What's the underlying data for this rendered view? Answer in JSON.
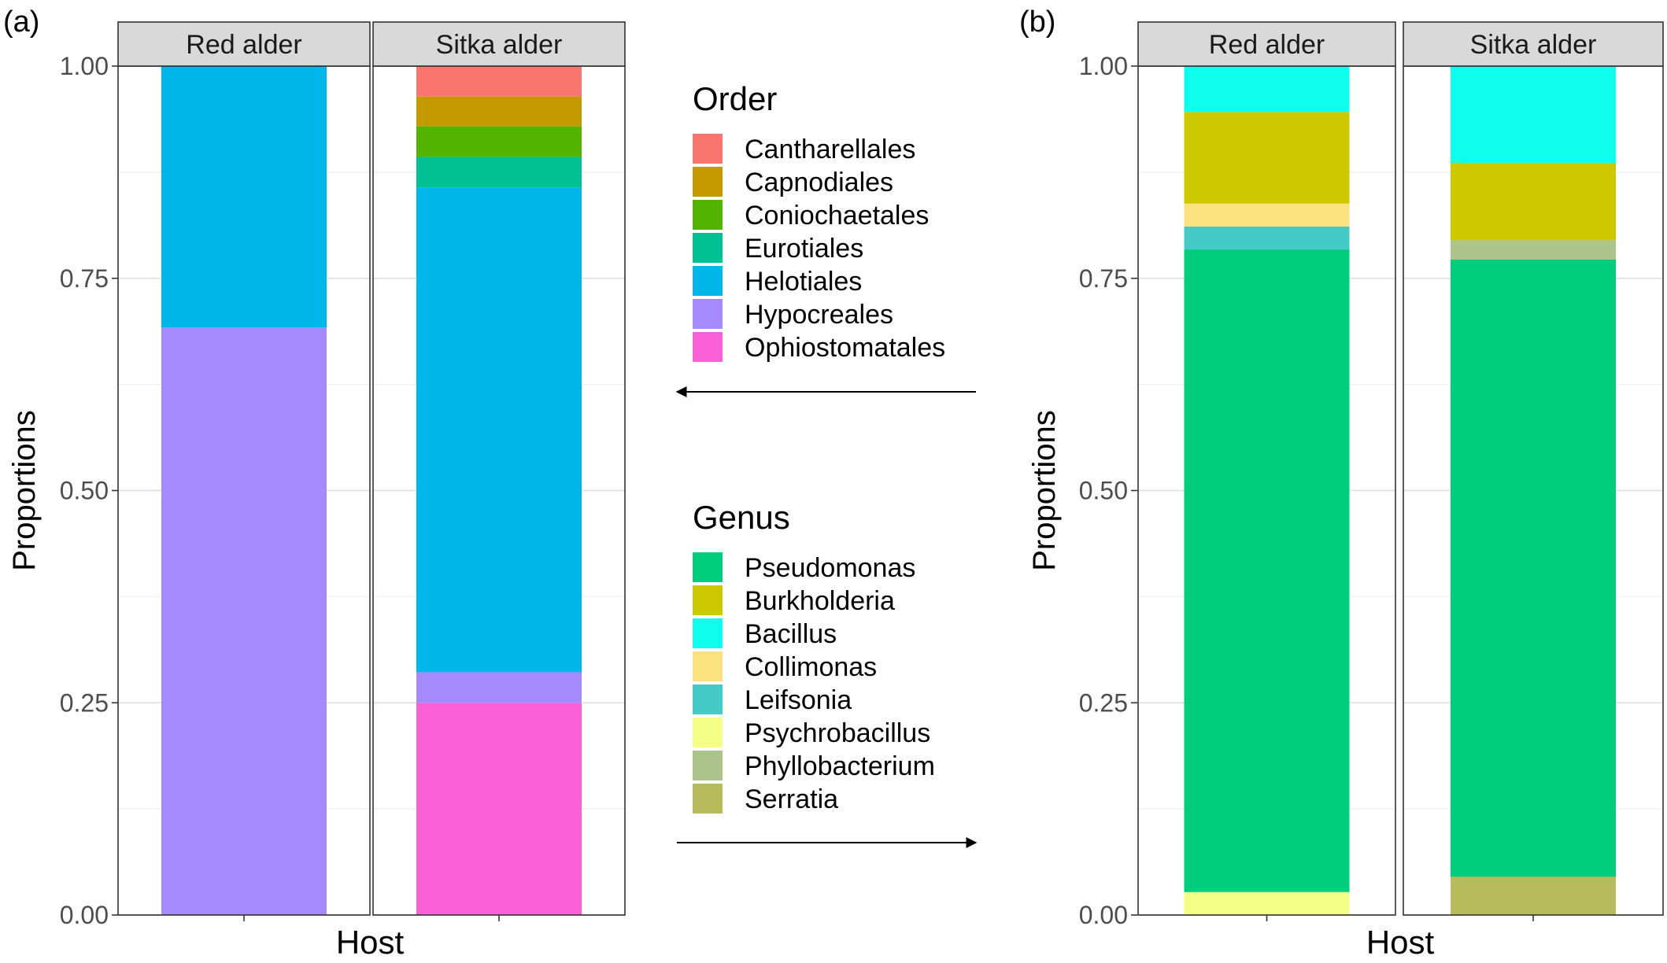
{
  "chart_data": [
    {
      "panel_label": "(a)",
      "type": "bar",
      "stacked": true,
      "ylabel": "Proportions",
      "xlabel": "Host",
      "ylim": [
        0,
        1
      ],
      "yticks": [
        "0.00",
        "0.25",
        "0.50",
        "0.75",
        "1.00"
      ],
      "grid": true,
      "facets": [
        "Red alder",
        "Sitka alder"
      ],
      "legend": {
        "title": "Order",
        "placement": "right",
        "items": [
          {
            "name": "Cantharellales",
            "color": "#F8766D"
          },
          {
            "name": "Capnodiales",
            "color": "#C49A00"
          },
          {
            "name": "Coniochaetales",
            "color": "#53B400"
          },
          {
            "name": "Eurotiales",
            "color": "#00C094"
          },
          {
            "name": "Helotiales",
            "color": "#00B6EB"
          },
          {
            "name": "Hypocreales",
            "color": "#A58AFF"
          },
          {
            "name": "Ophiostomatales",
            "color": "#FB61D7"
          }
        ]
      },
      "series": [
        {
          "name": "Ophiostomatales",
          "color": "#FB61D7",
          "values": [
            0.0,
            0.25
          ]
        },
        {
          "name": "Hypocreales",
          "color": "#A58AFF",
          "values": [
            0.692,
            0.036
          ]
        },
        {
          "name": "Helotiales",
          "color": "#00B6EB",
          "values": [
            0.308,
            0.571
          ]
        },
        {
          "name": "Eurotiales",
          "color": "#00C094",
          "values": [
            0.0,
            0.036
          ]
        },
        {
          "name": "Coniochaetales",
          "color": "#53B400",
          "values": [
            0.0,
            0.036
          ]
        },
        {
          "name": "Capnodiales",
          "color": "#C49A00",
          "values": [
            0.0,
            0.035
          ]
        },
        {
          "name": "Cantharellales",
          "color": "#F8766D",
          "values": [
            0.0,
            0.036
          ]
        }
      ]
    },
    {
      "panel_label": "(b)",
      "type": "bar",
      "stacked": true,
      "ylabel": "Proportions",
      "xlabel": "Host",
      "ylim": [
        0,
        1
      ],
      "yticks": [
        "0.00",
        "0.25",
        "0.50",
        "0.75",
        "1.00"
      ],
      "grid": true,
      "facets": [
        "Red alder",
        "Sitka alder"
      ],
      "legend": {
        "title": "Genus",
        "placement": "left",
        "items": [
          {
            "name": "Pseudomonas",
            "color": "#00CD7E"
          },
          {
            "name": "Burkholderia",
            "color": "#CDC900"
          },
          {
            "name": "Bacillus",
            "color": "#0FFFEE"
          },
          {
            "name": "Collimonas",
            "color": "#FCE27F"
          },
          {
            "name": "Leifsonia",
            "color": "#45CBC7"
          },
          {
            "name": "Psychrobacillus",
            "color": "#F4FF85"
          },
          {
            "name": "Phyllobacterium",
            "color": "#ABC58A"
          },
          {
            "name": "Serratia",
            "color": "#B8BB5C"
          }
        ]
      },
      "series": [
        {
          "name": "Serratia",
          "color": "#B8BB5C",
          "values": [
            0.0,
            0.045
          ]
        },
        {
          "name": "Psychrobacillus",
          "color": "#F4FF85",
          "values": [
            0.027,
            0.0
          ]
        },
        {
          "name": "Pseudomonas",
          "color": "#00CD7E",
          "values": [
            0.757,
            0.727
          ]
        },
        {
          "name": "Phyllobacterium",
          "color": "#ABC58A",
          "values": [
            0.0,
            0.023
          ]
        },
        {
          "name": "Leifsonia",
          "color": "#45CBC7",
          "values": [
            0.027,
            0.0
          ]
        },
        {
          "name": "Collimonas",
          "color": "#FCE27F",
          "values": [
            0.027,
            0.0
          ]
        },
        {
          "name": "Burkholderia",
          "color": "#CDC900",
          "values": [
            0.108,
            0.091
          ]
        },
        {
          "name": "Bacillus",
          "color": "#0FFFEE",
          "values": [
            0.054,
            0.114
          ]
        }
      ]
    }
  ]
}
